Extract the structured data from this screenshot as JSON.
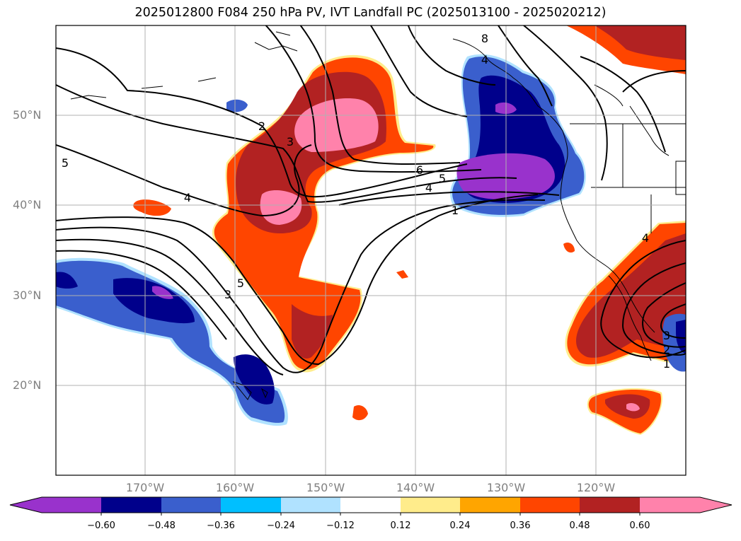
{
  "title": "2025012800 F084 250 hPa PV, IVT Landfall PC (2025013100 - 2025020212)",
  "map": {
    "lat_labels": [
      "50°N",
      "40°N",
      "30°N",
      "20°N"
    ],
    "lon_labels": [
      "170°W",
      "160°W",
      "150°W",
      "140°W",
      "130°W",
      "120°W"
    ],
    "contour_labels": [
      "2",
      "3",
      "5",
      "4",
      "6",
      "5",
      "4",
      "1",
      "8",
      "5",
      "3",
      "3",
      "2",
      "1",
      "4",
      "4"
    ],
    "gridlines": true
  },
  "colorbar": {
    "ticks": [
      "−0.60",
      "−0.48",
      "−0.36",
      "−0.24",
      "−0.12",
      "0.12",
      "0.24",
      "0.36",
      "0.48",
      "0.60"
    ],
    "colors": [
      "#9932cc",
      "#00008b",
      "#3a5fcd",
      "#00bfff",
      "#b0e2ff",
      "#ffffff",
      "#ffec8b",
      "#ffa500",
      "#ff4500",
      "#b22222",
      "#ff82ab"
    ],
    "extend": "both"
  }
}
